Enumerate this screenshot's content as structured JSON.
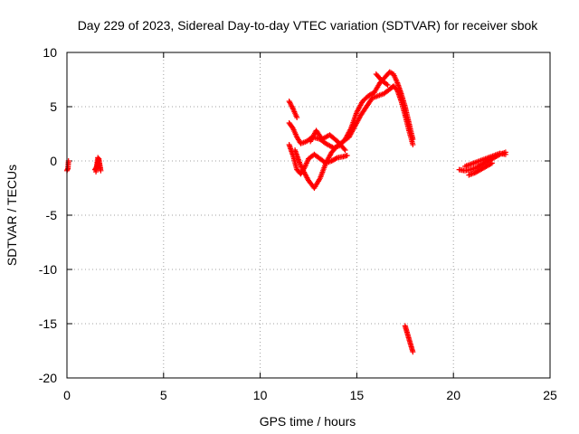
{
  "chart_data": {
    "type": "scatter",
    "title": "Day 229 of 2023, Sidereal Day-to-day VTEC variation (SDTVAR) for receiver sbok",
    "xlabel": "GPS time / hours",
    "ylabel": "SDTVAR / TECUs",
    "xlim": [
      0,
      25
    ],
    "ylim": [
      -20,
      10
    ],
    "xticks": [
      0,
      5,
      10,
      15,
      20,
      25
    ],
    "yticks": [
      -20,
      -15,
      -10,
      -5,
      0,
      5,
      10
    ],
    "grid": true,
    "marker": "plus",
    "color": "#ff0000",
    "series": [
      {
        "name": "tracks",
        "segments": [
          [
            [
              0.0,
              -0.9
            ],
            [
              0.05,
              -0.7
            ],
            [
              0.08,
              0.0
            ]
          ],
          [
            [
              1.45,
              -0.8
            ],
            [
              1.55,
              -0.5
            ],
            [
              1.65,
              0.2
            ],
            [
              1.75,
              -0.9
            ],
            [
              1.6,
              0.3
            ],
            [
              1.5,
              -1.0
            ]
          ],
          [
            [
              11.5,
              5.5
            ],
            [
              11.7,
              4.8
            ],
            [
              11.9,
              4.0
            ]
          ],
          [
            [
              11.5,
              3.5
            ],
            [
              11.7,
              3.0
            ],
            [
              11.9,
              2.2
            ],
            [
              12.1,
              1.6
            ],
            [
              12.4,
              1.8
            ],
            [
              12.7,
              2.2
            ],
            [
              13.1,
              2.0
            ],
            [
              13.4,
              1.6
            ],
            [
              13.8,
              1.2
            ],
            [
              14.1,
              1.4
            ],
            [
              14.4,
              2.0
            ],
            [
              14.7,
              3.0
            ],
            [
              15.0,
              4.5
            ],
            [
              15.3,
              5.5
            ],
            [
              15.6,
              6.0
            ],
            [
              15.9,
              6.3
            ],
            [
              16.2,
              7.2
            ],
            [
              16.5,
              7.8
            ],
            [
              16.7,
              8.2
            ],
            [
              16.9,
              8.0
            ],
            [
              17.1,
              7.2
            ],
            [
              17.3,
              6.2
            ],
            [
              17.5,
              5.0
            ],
            [
              17.7,
              3.5
            ],
            [
              17.9,
              2.0
            ]
          ],
          [
            [
              11.5,
              1.5
            ],
            [
              11.7,
              0.5
            ],
            [
              11.9,
              -0.8
            ],
            [
              12.1,
              -1.2
            ],
            [
              12.3,
              -0.6
            ],
            [
              12.5,
              0.2
            ],
            [
              12.8,
              0.6
            ],
            [
              13.1,
              0.2
            ],
            [
              13.4,
              -0.2
            ],
            [
              13.7,
              0.0
            ],
            [
              14.0,
              0.3
            ],
            [
              14.3,
              0.4
            ],
            [
              14.5,
              0.5
            ]
          ],
          [
            [
              11.8,
              1.0
            ],
            [
              12.0,
              0.0
            ],
            [
              12.2,
              -0.8
            ],
            [
              12.5,
              -1.8
            ],
            [
              12.8,
              -2.5
            ],
            [
              13.1,
              -1.6
            ],
            [
              13.4,
              -0.2
            ],
            [
              13.7,
              0.8
            ],
            [
              14.0,
              1.4
            ],
            [
              14.3,
              1.8
            ],
            [
              14.6,
              2.2
            ],
            [
              14.9,
              3.2
            ],
            [
              15.2,
              4.2
            ],
            [
              15.5,
              5.0
            ],
            [
              15.8,
              5.8
            ],
            [
              16.1,
              6.0
            ],
            [
              16.4,
              6.2
            ],
            [
              16.7,
              6.6
            ],
            [
              16.9,
              6.9
            ],
            [
              17.1,
              6.5
            ],
            [
              17.3,
              5.5
            ],
            [
              17.5,
              4.2
            ],
            [
              17.7,
              2.8
            ],
            [
              17.9,
              1.5
            ]
          ],
          [
            [
              12.6,
              1.8
            ],
            [
              12.9,
              2.8
            ],
            [
              13.2,
              2.0
            ],
            [
              13.6,
              2.4
            ],
            [
              14.0,
              1.8
            ],
            [
              14.4,
              1.0
            ]
          ],
          [
            [
              16.0,
              8.0
            ],
            [
              16.3,
              7.4
            ],
            [
              16.6,
              7.0
            ]
          ],
          [
            [
              17.5,
              -15.2
            ],
            [
              17.6,
              -15.8
            ],
            [
              17.7,
              -16.4
            ],
            [
              17.8,
              -17.0
            ],
            [
              17.9,
              -17.6
            ]
          ],
          [
            [
              20.3,
              -0.8
            ],
            [
              20.6,
              -0.9
            ],
            [
              20.9,
              -0.8
            ],
            [
              21.2,
              -0.6
            ],
            [
              21.5,
              -0.3
            ],
            [
              21.8,
              0.0
            ],
            [
              22.1,
              0.3
            ],
            [
              22.4,
              0.6
            ],
            [
              22.7,
              0.8
            ]
          ],
          [
            [
              20.6,
              -0.5
            ],
            [
              20.9,
              -0.3
            ],
            [
              21.2,
              -0.1
            ],
            [
              21.5,
              0.1
            ],
            [
              21.8,
              0.3
            ],
            [
              22.1,
              0.5
            ],
            [
              22.4,
              0.7
            ],
            [
              22.7,
              0.6
            ]
          ],
          [
            [
              20.8,
              -1.3
            ],
            [
              21.1,
              -1.1
            ],
            [
              21.4,
              -0.8
            ],
            [
              21.7,
              -0.5
            ],
            [
              22.0,
              -0.2
            ]
          ]
        ]
      }
    ]
  }
}
